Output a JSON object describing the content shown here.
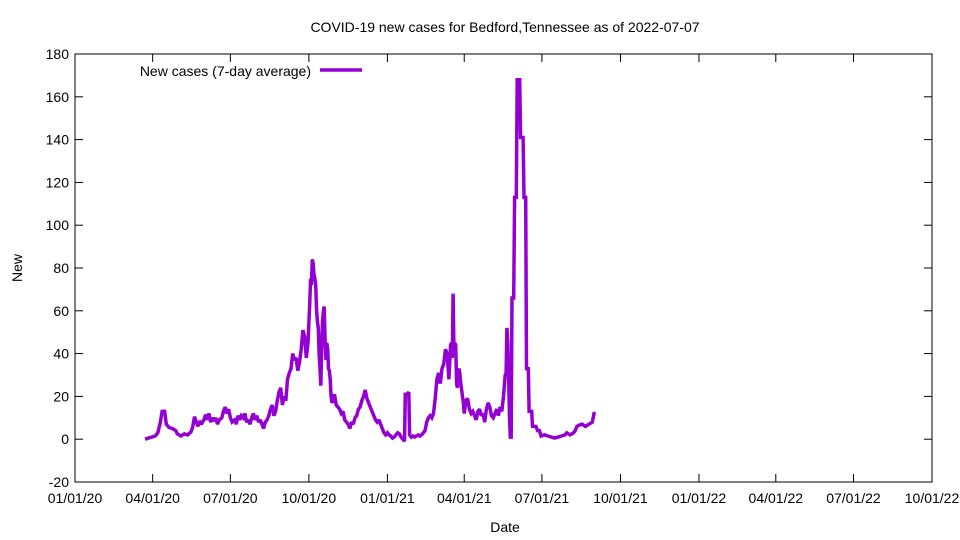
{
  "chart_data": {
    "type": "line",
    "title": "COVID-19 new cases for Bedford,Tennessee as of 2022-07-07",
    "xlabel": "Date",
    "ylabel": "New",
    "ylim": [
      -20,
      180
    ],
    "yticks": [
      -20,
      0,
      20,
      40,
      60,
      80,
      100,
      120,
      140,
      160,
      180
    ],
    "xlim_days": [
      0,
      1004
    ],
    "xticks": [
      {
        "label": "01/01/20",
        "day": 0
      },
      {
        "label": "04/01/20",
        "day": 91
      },
      {
        "label": "07/01/20",
        "day": 182
      },
      {
        "label": "10/01/20",
        "day": 274
      },
      {
        "label": "01/01/21",
        "day": 366
      },
      {
        "label": "04/01/21",
        "day": 456
      },
      {
        "label": "07/01/21",
        "day": 547
      },
      {
        "label": "10/01/21",
        "day": 639
      },
      {
        "label": "01/01/22",
        "day": 731
      },
      {
        "label": "04/01/22",
        "day": 821
      },
      {
        "label": "07/01/22",
        "day": 912
      },
      {
        "label": "10/01/22",
        "day": 1004
      }
    ],
    "legend": {
      "position": "top-left"
    },
    "grid": false,
    "series": [
      {
        "name": "New cases (7-day average)",
        "color": "#9400d3",
        "points": [
          [
            82,
            0
          ],
          [
            86,
            0.5
          ],
          [
            90,
            1
          ],
          [
            94,
            1.5
          ],
          [
            97,
            3
          ],
          [
            100,
            8
          ],
          [
            102,
            13
          ],
          [
            105,
            13
          ],
          [
            107,
            7
          ],
          [
            110,
            5.5
          ],
          [
            114,
            5
          ],
          [
            118,
            4
          ],
          [
            120,
            2.5
          ],
          [
            124,
            1.5
          ],
          [
            128,
            2.5
          ],
          [
            132,
            2
          ],
          [
            136,
            3.5
          ],
          [
            138,
            6
          ],
          [
            140,
            10.5
          ],
          [
            142,
            8
          ],
          [
            144,
            6
          ],
          [
            146,
            8.5
          ],
          [
            148,
            7
          ],
          [
            151,
            9
          ],
          [
            153,
            11.5
          ],
          [
            155,
            9
          ],
          [
            157,
            12
          ],
          [
            159,
            8
          ],
          [
            161,
            10
          ],
          [
            163,
            8.5
          ],
          [
            165,
            10
          ],
          [
            167,
            7
          ],
          [
            169,
            9
          ],
          [
            172,
            10
          ],
          [
            174,
            13
          ],
          [
            176,
            15
          ],
          [
            178,
            12
          ],
          [
            180,
            14
          ],
          [
            182,
            10
          ],
          [
            184,
            8
          ],
          [
            187,
            9
          ],
          [
            189,
            7
          ],
          [
            191,
            11
          ],
          [
            193,
            9
          ],
          [
            195,
            11
          ],
          [
            197,
            10
          ],
          [
            199,
            12
          ],
          [
            201,
            8
          ],
          [
            203,
            9
          ],
          [
            205,
            7
          ],
          [
            207,
            10
          ],
          [
            209,
            12
          ],
          [
            211,
            9
          ],
          [
            213,
            11
          ],
          [
            215,
            8
          ],
          [
            217,
            9
          ],
          [
            219,
            7
          ],
          [
            221,
            5
          ],
          [
            223,
            8
          ],
          [
            225,
            9
          ],
          [
            227,
            11
          ],
          [
            229,
            14
          ],
          [
            231,
            16
          ],
          [
            233,
            11
          ],
          [
            235,
            13
          ],
          [
            237,
            18
          ],
          [
            239,
            22
          ],
          [
            241,
            24
          ],
          [
            243,
            16
          ],
          [
            245,
            20
          ],
          [
            247,
            18
          ],
          [
            249,
            28
          ],
          [
            251,
            31
          ],
          [
            253,
            33
          ],
          [
            255,
            40
          ],
          [
            257,
            37
          ],
          [
            259,
            38
          ],
          [
            261,
            32
          ],
          [
            263,
            36
          ],
          [
            265,
            42
          ],
          [
            267,
            51
          ],
          [
            269,
            48
          ],
          [
            271,
            38
          ],
          [
            273,
            45
          ],
          [
            275,
            63
          ],
          [
            276,
            75
          ],
          [
            277,
            72
          ],
          [
            278,
            84
          ],
          [
            279,
            82
          ],
          [
            280,
            77
          ],
          [
            281,
            75
          ],
          [
            282,
            72
          ],
          [
            283,
            60
          ],
          [
            284,
            55
          ],
          [
            285,
            52
          ],
          [
            286,
            40
          ],
          [
            287,
            33
          ],
          [
            288,
            25
          ],
          [
            289,
            42
          ],
          [
            290,
            55
          ],
          [
            291,
            60
          ],
          [
            292,
            62
          ],
          [
            293,
            46
          ],
          [
            294,
            37
          ],
          [
            295,
            45
          ],
          [
            296,
            42
          ],
          [
            297,
            33
          ],
          [
            298,
            32
          ],
          [
            299,
            28
          ],
          [
            300,
            20
          ],
          [
            301,
            17
          ],
          [
            302,
            18
          ],
          [
            304,
            21
          ],
          [
            306,
            16
          ],
          [
            308,
            15
          ],
          [
            310,
            14
          ],
          [
            312,
            12
          ],
          [
            314,
            13
          ],
          [
            316,
            9
          ],
          [
            318,
            8
          ],
          [
            320,
            7
          ],
          [
            322,
            5
          ],
          [
            324,
            8
          ],
          [
            326,
            7
          ],
          [
            328,
            10
          ],
          [
            330,
            11
          ],
          [
            332,
            14
          ],
          [
            334,
            15
          ],
          [
            336,
            18
          ],
          [
            338,
            20
          ],
          [
            340,
            23
          ],
          [
            342,
            19
          ],
          [
            344,
            17
          ],
          [
            346,
            15
          ],
          [
            348,
            13
          ],
          [
            350,
            11
          ],
          [
            352,
            9
          ],
          [
            354,
            8
          ],
          [
            356,
            9
          ],
          [
            358,
            7
          ],
          [
            360,
            5
          ],
          [
            362,
            3
          ],
          [
            364,
            2
          ],
          [
            366,
            3
          ],
          [
            368,
            2
          ],
          [
            370,
            1.5
          ],
          [
            372,
            0.5
          ],
          [
            374,
            1
          ],
          [
            376,
            2
          ],
          [
            378,
            3
          ],
          [
            380,
            2.5
          ],
          [
            382,
            1
          ],
          [
            384,
            0
          ],
          [
            386,
            -1
          ],
          [
            387,
            21
          ],
          [
            389,
            21
          ],
          [
            391,
            22
          ],
          [
            392,
            2
          ],
          [
            394,
            1
          ],
          [
            396,
            1.5
          ],
          [
            398,
            1
          ],
          [
            400,
            1.5
          ],
          [
            402,
            2
          ],
          [
            404,
            1.5
          ],
          [
            406,
            2
          ],
          [
            408,
            3
          ],
          [
            410,
            4
          ],
          [
            412,
            8
          ],
          [
            414,
            10
          ],
          [
            416,
            11
          ],
          [
            418,
            10
          ],
          [
            420,
            12
          ],
          [
            422,
            19
          ],
          [
            424,
            28
          ],
          [
            426,
            31
          ],
          [
            428,
            26
          ],
          [
            430,
            33
          ],
          [
            432,
            35
          ],
          [
            434,
            42
          ],
          [
            436,
            40
          ],
          [
            438,
            28
          ],
          [
            440,
            44
          ],
          [
            441,
            45
          ],
          [
            442,
            38
          ],
          [
            443,
            68
          ],
          [
            444,
            40
          ],
          [
            445,
            45
          ],
          [
            446,
            44
          ],
          [
            447,
            26
          ],
          [
            448,
            24
          ],
          [
            449,
            32
          ],
          [
            450,
            33
          ],
          [
            451,
            30
          ],
          [
            452,
            26
          ],
          [
            454,
            20
          ],
          [
            455,
            17
          ],
          [
            456,
            12
          ],
          [
            458,
            18
          ],
          [
            460,
            19
          ],
          [
            462,
            14
          ],
          [
            464,
            12
          ],
          [
            466,
            13
          ],
          [
            468,
            11
          ],
          [
            470,
            9
          ],
          [
            472,
            13
          ],
          [
            474,
            14
          ],
          [
            476,
            11
          ],
          [
            478,
            12
          ],
          [
            480,
            8
          ],
          [
            482,
            14
          ],
          [
            484,
            17
          ],
          [
            486,
            15
          ],
          [
            488,
            11
          ],
          [
            490,
            10
          ],
          [
            492,
            12
          ],
          [
            494,
            14
          ],
          [
            496,
            11
          ],
          [
            498,
            15
          ],
          [
            500,
            13
          ],
          [
            502,
            20
          ],
          [
            504,
            30
          ],
          [
            505,
            31
          ],
          [
            506,
            52
          ],
          [
            507,
            45
          ],
          [
            508,
            30
          ],
          [
            509,
            10
          ],
          [
            510,
            1
          ],
          [
            511,
            1
          ],
          [
            512,
            66
          ],
          [
            514,
            66
          ],
          [
            515,
            113
          ],
          [
            517,
            113
          ],
          [
            518,
            168
          ],
          [
            521,
            168
          ],
          [
            522,
            141
          ],
          [
            525,
            141
          ],
          [
            526,
            113
          ],
          [
            528,
            113
          ],
          [
            529,
            33
          ],
          [
            531,
            33
          ],
          [
            532,
            13
          ],
          [
            535,
            13
          ],
          [
            536,
            6
          ],
          [
            540,
            6
          ],
          [
            542,
            4
          ],
          [
            544,
            4
          ],
          [
            546,
            1.5
          ],
          [
            550,
            2
          ],
          [
            554,
            1.5
          ],
          [
            558,
            1
          ],
          [
            562,
            0.5
          ],
          [
            566,
            1
          ],
          [
            570,
            1.5
          ],
          [
            574,
            2
          ],
          [
            576,
            3
          ],
          [
            578,
            2.5
          ],
          [
            580,
            2
          ],
          [
            582,
            2.5
          ],
          [
            584,
            3
          ],
          [
            586,
            4
          ],
          [
            588,
            6
          ],
          [
            590,
            6.5
          ],
          [
            594,
            7
          ],
          [
            598,
            6
          ],
          [
            602,
            7
          ],
          [
            606,
            8
          ],
          [
            608,
            12
          ],
          [
            610,
            12
          ]
        ]
      }
    ]
  }
}
